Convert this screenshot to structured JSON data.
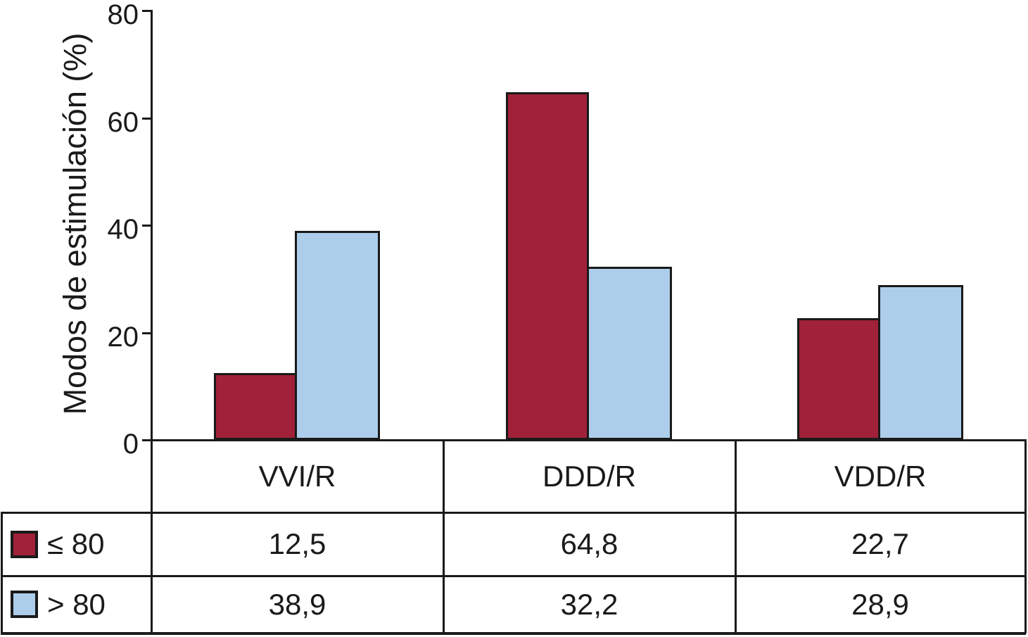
{
  "chart_data": {
    "type": "bar",
    "title": "",
    "ylabel": "Modos de estimulación (%)",
    "xlabel": "",
    "ylim": [
      0,
      80
    ],
    "yticks": [
      0,
      20,
      40,
      60,
      80
    ],
    "grid": false,
    "legend_position": "table-left",
    "categories": [
      "VVI/R",
      "DDD/R",
      "VDD/R"
    ],
    "series": [
      {
        "name": "≤ 80",
        "color": "#A02139",
        "values": [
          12.5,
          64.8,
          22.7
        ],
        "labels": [
          "12,5",
          "64,8",
          "22,7"
        ]
      },
      {
        "name": "> 80",
        "color": "#ACCEEB",
        "values": [
          38.9,
          32.2,
          28.9
        ],
        "labels": [
          "38,9",
          "32,2",
          "28,9"
        ]
      }
    ]
  },
  "colors": {
    "line": "#1a1a1a",
    "text": "#1a1a1a",
    "background": "#ffffff"
  }
}
